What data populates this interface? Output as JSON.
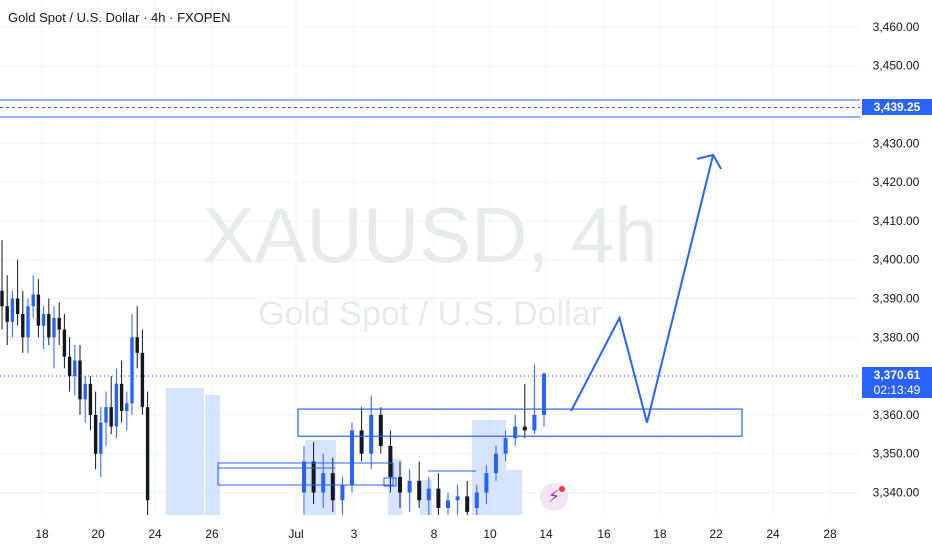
{
  "header": {
    "title": "Gold Spot / U.S. Dollar · 4h · FXOPEN"
  },
  "watermark": {
    "symbol": "XAUUSD, 4h",
    "name": "Gold Spot / U.S. Dollar"
  },
  "chart_data": {
    "type": "candlestick",
    "symbol": "XAUUSD",
    "interval": "4h",
    "y_range": [
      3335,
      3465
    ],
    "y_ticks": [
      3340,
      3350,
      3360,
      3370,
      3380,
      3390,
      3400,
      3410,
      3420,
      3430,
      3440,
      3450,
      3460
    ],
    "y_tick_labels": [
      "3,340.00",
      "3,350.00",
      "3,360.00",
      "3,370.00",
      "3,380.00",
      "3,390.00",
      "3,400.00",
      "3,410.00",
      "3,420.00",
      "3,430.00",
      "3,440.00",
      "3,450.00",
      "3,460.00"
    ],
    "x_tick_labels": [
      "18",
      "20",
      "24",
      "26",
      "Jul",
      "3",
      "8",
      "10",
      "14",
      "16",
      "18",
      "22",
      "24",
      "28"
    ],
    "current_price": "3,370.61",
    "countdown": "02:13:49",
    "target_price": "3,439.25",
    "candles": [
      {
        "o": 3392,
        "h": 3405,
        "l": 3382,
        "c": 3388
      },
      {
        "o": 3388,
        "h": 3396,
        "l": 3378,
        "c": 3384
      },
      {
        "o": 3384,
        "h": 3392,
        "l": 3380,
        "c": 3390
      },
      {
        "o": 3390,
        "h": 3400,
        "l": 3383,
        "c": 3386
      },
      {
        "o": 3386,
        "h": 3392,
        "l": 3376,
        "c": 3380
      },
      {
        "o": 3380,
        "h": 3390,
        "l": 3376,
        "c": 3388
      },
      {
        "o": 3388,
        "h": 3396,
        "l": 3385,
        "c": 3391
      },
      {
        "o": 3391,
        "h": 3395,
        "l": 3380,
        "c": 3383
      },
      {
        "o": 3383,
        "h": 3388,
        "l": 3377,
        "c": 3386
      },
      {
        "o": 3386,
        "h": 3390,
        "l": 3378,
        "c": 3380
      },
      {
        "o": 3380,
        "h": 3388,
        "l": 3372,
        "c": 3385
      },
      {
        "o": 3385,
        "h": 3389,
        "l": 3378,
        "c": 3382
      },
      {
        "o": 3382,
        "h": 3386,
        "l": 3372,
        "c": 3375
      },
      {
        "o": 3375,
        "h": 3380,
        "l": 3366,
        "c": 3370
      },
      {
        "o": 3370,
        "h": 3378,
        "l": 3365,
        "c": 3374
      },
      {
        "o": 3374,
        "h": 3378,
        "l": 3360,
        "c": 3364
      },
      {
        "o": 3364,
        "h": 3370,
        "l": 3358,
        "c": 3368
      },
      {
        "o": 3368,
        "h": 3370,
        "l": 3356,
        "c": 3360
      },
      {
        "o": 3360,
        "h": 3366,
        "l": 3346,
        "c": 3350
      },
      {
        "o": 3350,
        "h": 3362,
        "l": 3344,
        "c": 3358
      },
      {
        "o": 3358,
        "h": 3366,
        "l": 3352,
        "c": 3362
      },
      {
        "o": 3362,
        "h": 3370,
        "l": 3355,
        "c": 3357
      },
      {
        "o": 3357,
        "h": 3372,
        "l": 3354,
        "c": 3368
      },
      {
        "o": 3368,
        "h": 3374,
        "l": 3358,
        "c": 3361
      },
      {
        "o": 3361,
        "h": 3366,
        "l": 3356,
        "c": 3363
      },
      {
        "o": 3363,
        "h": 3386,
        "l": 3360,
        "c": 3380
      },
      {
        "o": 3380,
        "h": 3388,
        "l": 3372,
        "c": 3376
      },
      {
        "o": 3376,
        "h": 3382,
        "l": 3360,
        "c": 3362
      },
      {
        "o": 3362,
        "h": 3366,
        "l": 3334,
        "c": 3338
      }
    ],
    "late_candles": [
      {
        "o": 3340,
        "h": 3352,
        "l": 3334,
        "c": 3348
      },
      {
        "o": 3348,
        "h": 3353,
        "l": 3337,
        "c": 3340
      },
      {
        "o": 3340,
        "h": 3350,
        "l": 3336,
        "c": 3345
      },
      {
        "o": 3345,
        "h": 3349,
        "l": 3335,
        "c": 3338
      },
      {
        "o": 3338,
        "h": 3344,
        "l": 3334,
        "c": 3342
      },
      {
        "o": 3342,
        "h": 3358,
        "l": 3340,
        "c": 3356
      },
      {
        "o": 3356,
        "h": 3362,
        "l": 3348,
        "c": 3350
      },
      {
        "o": 3350,
        "h": 3365,
        "l": 3346,
        "c": 3360
      },
      {
        "o": 3360,
        "h": 3362,
        "l": 3350,
        "c": 3352
      },
      {
        "o": 3352,
        "h": 3356,
        "l": 3340,
        "c": 3344
      },
      {
        "o": 3344,
        "h": 3348,
        "l": 3336,
        "c": 3340
      },
      {
        "o": 3340,
        "h": 3346,
        "l": 3335,
        "c": 3343
      },
      {
        "o": 3343,
        "h": 3348,
        "l": 3336,
        "c": 3338
      },
      {
        "o": 3338,
        "h": 3344,
        "l": 3334,
        "c": 3341
      },
      {
        "o": 3341,
        "h": 3345,
        "l": 3334,
        "c": 3336
      },
      {
        "o": 3336,
        "h": 3340,
        "l": 3334,
        "c": 3338
      },
      {
        "o": 3338,
        "h": 3342,
        "l": 3334,
        "c": 3339
      },
      {
        "o": 3339,
        "h": 3343,
        "l": 3334,
        "c": 3335
      },
      {
        "o": 3336,
        "h": 3342,
        "l": 3334,
        "c": 3340
      },
      {
        "o": 3340,
        "h": 3347,
        "l": 3337,
        "c": 3345
      },
      {
        "o": 3345,
        "h": 3352,
        "l": 3343,
        "c": 3350
      },
      {
        "o": 3350,
        "h": 3356,
        "l": 3348,
        "c": 3354
      },
      {
        "o": 3354,
        "h": 3360,
        "l": 3352,
        "c": 3357
      },
      {
        "o": 3357,
        "h": 3368,
        "l": 3354,
        "c": 3356
      },
      {
        "o": 3356,
        "h": 3373,
        "l": 3355,
        "c": 3360
      },
      {
        "o": 3360,
        "h": 3371,
        "l": 3357,
        "c": 3370.61
      }
    ],
    "projection_path": [
      {
        "day": "14.9",
        "price": 3361
      },
      {
        "day": "16.6",
        "price": 3385
      },
      {
        "day": "17.6",
        "price": 3358
      },
      {
        "day": "21.8",
        "price": 3427
      }
    ],
    "zones": [
      {
        "name": "demand-zone",
        "top": 3361.5,
        "bottom": 3354.5
      }
    ],
    "colors": {
      "up": "#2962ff",
      "down": "#131722",
      "accent": "#2962ff",
      "zone_fill": "#bbd0ff",
      "bolt": "#9c27b0"
    }
  }
}
